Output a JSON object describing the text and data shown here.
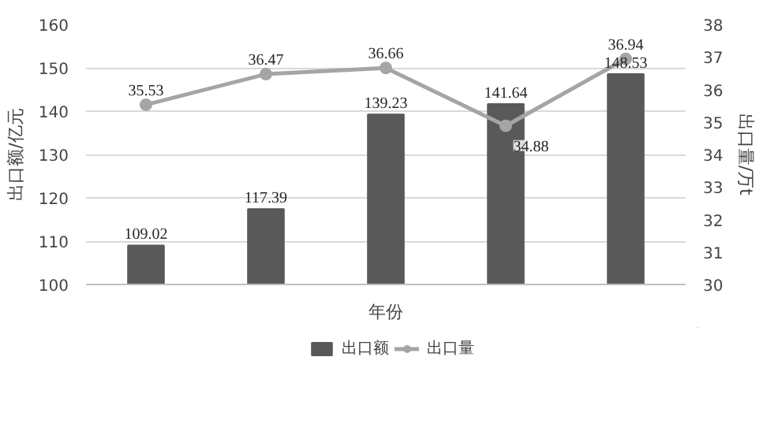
{
  "chart_data": {
    "type": "bar",
    "categories": [
      null,
      null,
      null,
      null,
      null
    ],
    "series": [
      {
        "name": "出口额",
        "color": "#595959",
        "values": [
          109.02,
          117.39,
          139.23,
          141.64,
          148.53
        ]
      },
      {
        "name": "出口量",
        "type": "line",
        "axis": "y2",
        "color": "#a5a5a5",
        "marker": "circle",
        "values": [
          35.53,
          36.47,
          36.66,
          34.88,
          36.94
        ]
      }
    ],
    "xlabel": "年份",
    "ylabel": "出口额/亿元",
    "y2label": "出口量/万t",
    "ylim": [
      100,
      160
    ],
    "yticks": [
      100,
      110,
      120,
      130,
      140,
      150,
      160
    ],
    "y2lim": [
      30,
      38
    ],
    "y2ticks": [
      30,
      31,
      32,
      33,
      34,
      35,
      36,
      37,
      38
    ],
    "grid": "y",
    "legend": "bottom",
    "data_labels": true
  }
}
